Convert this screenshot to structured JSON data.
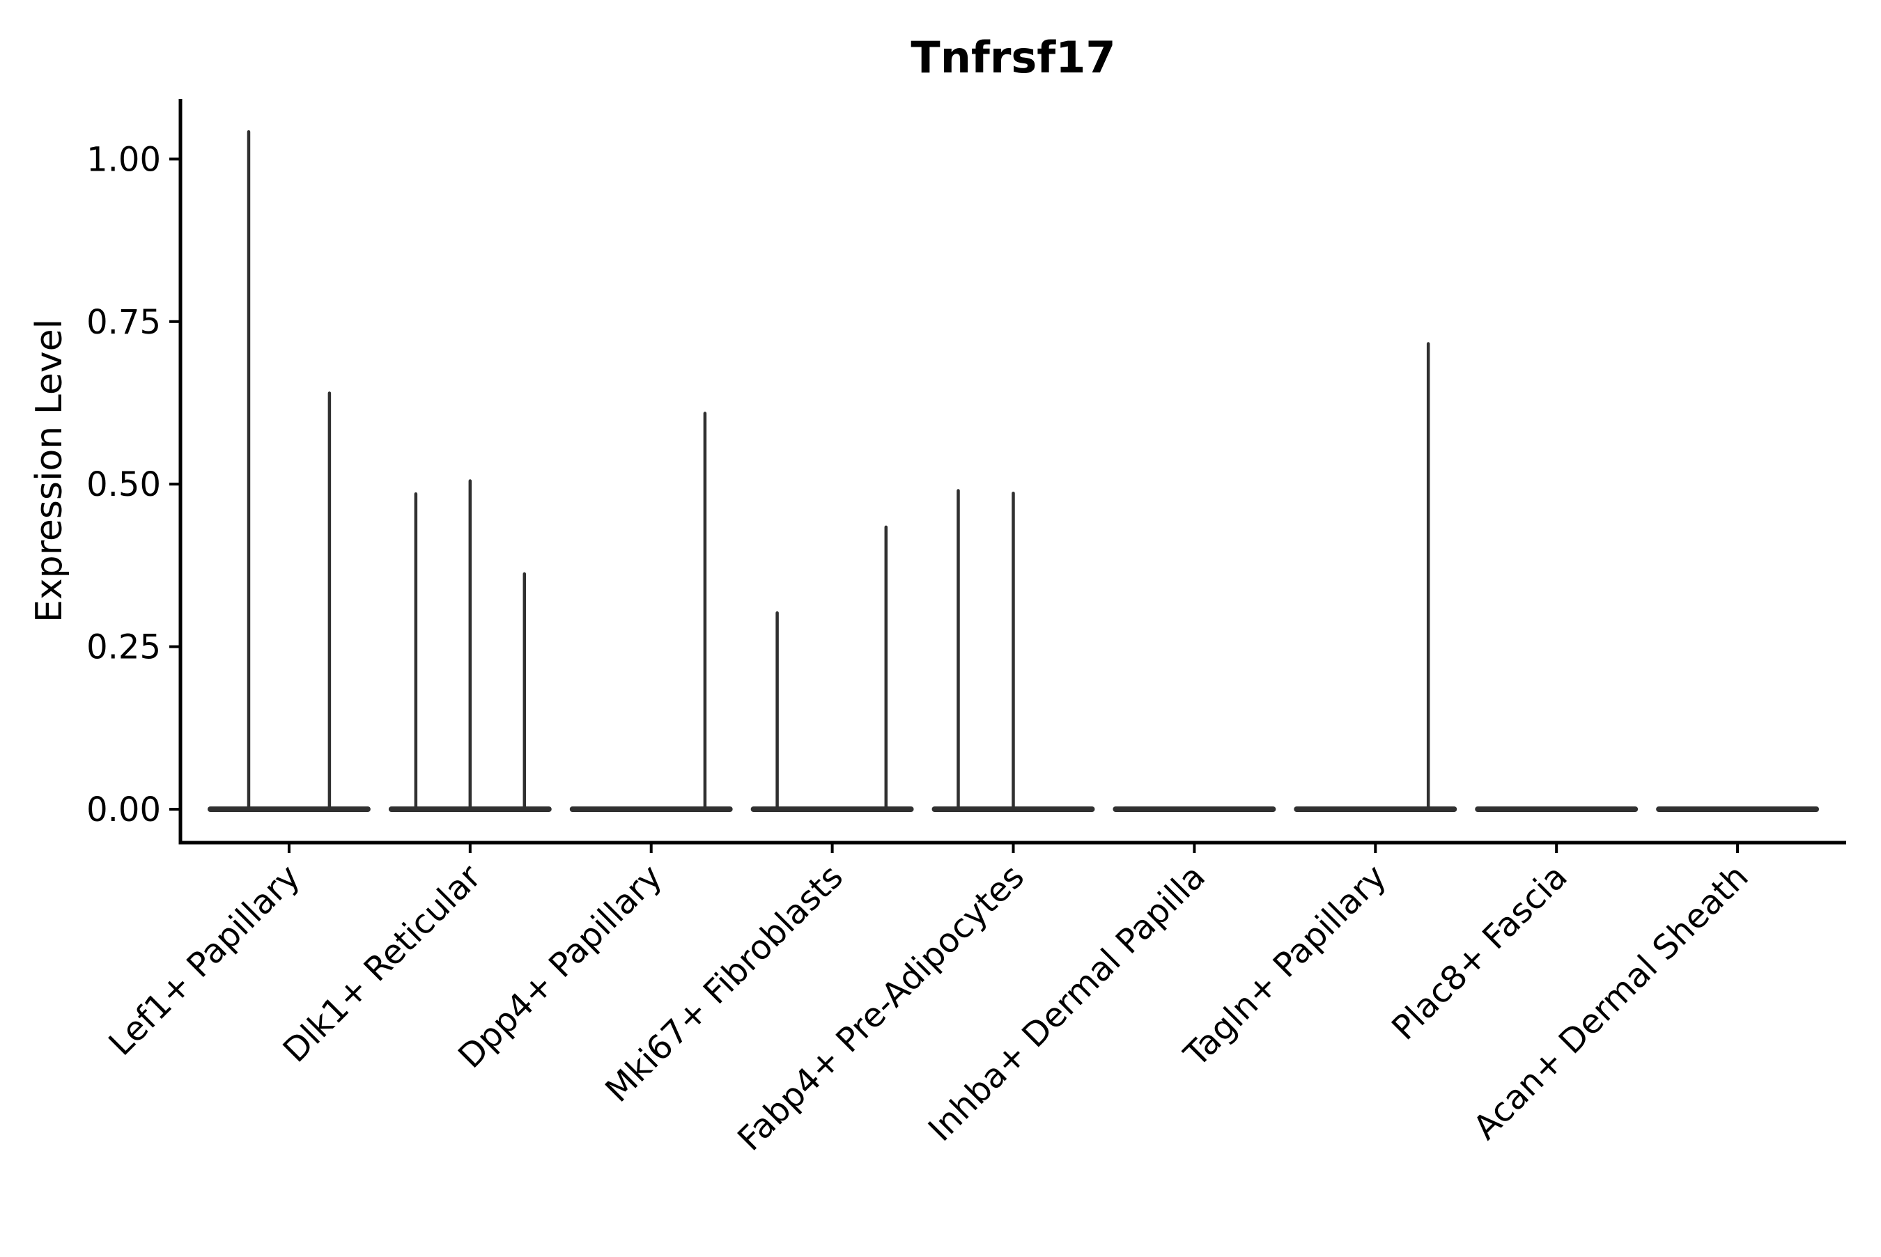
{
  "chart_data": {
    "type": "violin",
    "title": "Tnfrsf17",
    "xlabel": "",
    "ylabel": "Expression Level",
    "categories": [
      "Lef1+ Papillary",
      "Dlk1+ Reticular",
      "Dpp4+ Papillary",
      "Mki67+ Fibroblasts",
      "Fabp4+ Pre-Adipocytes",
      "Inhba+ Dermal Papilla",
      "Tagln+ Papillary",
      "Plac8+ Fascia",
      "Acan+ Dermal Sheath"
    ],
    "yticks": [
      0,
      0.25,
      0.5,
      0.75,
      1.0
    ],
    "ytick_labels": [
      "0.00",
      "0.25",
      "0.50",
      "0.75",
      "1.00"
    ],
    "ylim": [
      -0.051,
      1.093
    ],
    "grid": false,
    "legend": "none",
    "x_label_rotation_deg": 45,
    "violin_width_fraction": 0.9,
    "violins": [
      {
        "category": "Lef1+ Papillary",
        "spikes": [
          {
            "offset": -0.223,
            "value": 1.042
          },
          {
            "offset": 0.223,
            "value": 0.64
          }
        ]
      },
      {
        "category": "Dlk1+ Reticular",
        "spikes": [
          {
            "offset": -0.3,
            "value": 0.485
          },
          {
            "offset": 0.0,
            "value": 0.505
          },
          {
            "offset": 0.3,
            "value": 0.362
          }
        ]
      },
      {
        "category": "Dpp4+ Papillary",
        "spikes": [
          {
            "offset": 0.297,
            "value": 0.609
          }
        ]
      },
      {
        "category": "Mki67+ Fibroblasts",
        "spikes": [
          {
            "offset": -0.304,
            "value": 0.302
          },
          {
            "offset": 0.297,
            "value": 0.434
          }
        ]
      },
      {
        "category": "Fabp4+ Pre-Adipocytes",
        "spikes": [
          {
            "offset": -0.304,
            "value": 0.49
          },
          {
            "offset": 0.0,
            "value": 0.486
          }
        ]
      },
      {
        "category": "Inhba+ Dermal Papilla",
        "spikes": []
      },
      {
        "category": "Tagln+ Papillary",
        "spikes": [
          {
            "offset": 0.292,
            "value": 0.716
          }
        ]
      },
      {
        "category": "Plac8+ Fascia",
        "spikes": []
      },
      {
        "category": "Acan+ Dermal Sheath",
        "spikes": []
      }
    ],
    "colors": {
      "violin_stroke": "#303030",
      "axis": "#000000",
      "text": "#000000",
      "background": "#ffffff"
    }
  }
}
